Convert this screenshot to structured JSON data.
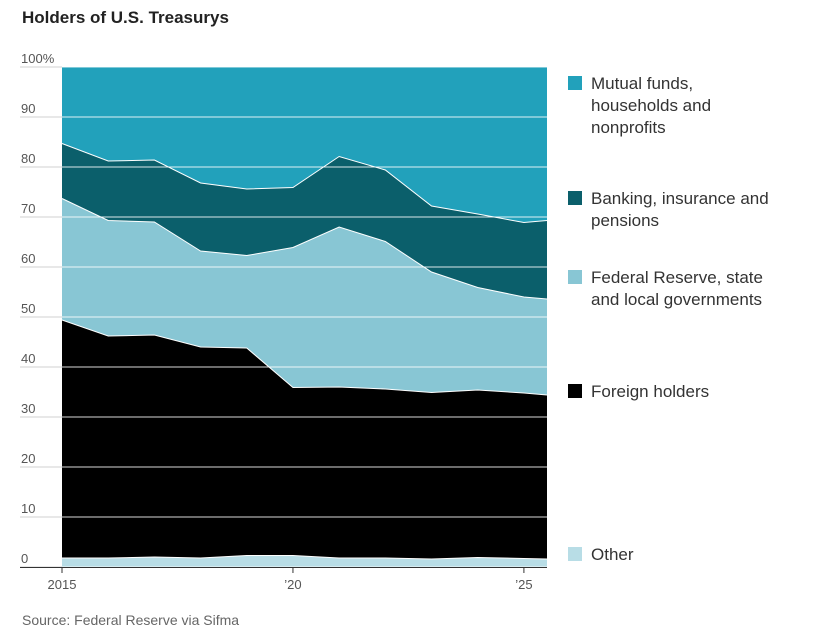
{
  "title": "Holders of U.S. Treasurys",
  "source": "Source: Federal Reserve via Sifma",
  "legend": [
    {
      "label": "Mutual funds, households and nonprofits",
      "color": "#22a1bb"
    },
    {
      "label": "Banking, insurance and pensions",
      "color": "#0b5f6b"
    },
    {
      "label": "Federal Reserve, state and local governments",
      "color": "#88c6d4"
    },
    {
      "label": "Foreign holders",
      "color": "#000000"
    },
    {
      "label": "Other",
      "color": "#b8dde6"
    }
  ],
  "chart_data": {
    "type": "area",
    "stacked": true,
    "x": [
      2015,
      2016,
      2017,
      2018,
      2019,
      2020,
      2021,
      2022,
      2023,
      2024,
      2025,
      2025.5
    ],
    "xlim": [
      2015,
      2025.5
    ],
    "ylim": [
      0,
      100
    ],
    "yticks": [
      0,
      10,
      20,
      30,
      40,
      50,
      60,
      70,
      80,
      90
    ],
    "ytick_labels": [
      "0",
      "10",
      "20",
      "30",
      "40",
      "50",
      "60",
      "70",
      "80",
      "90",
      "100%"
    ],
    "yticks_all": [
      0,
      10,
      20,
      30,
      40,
      50,
      60,
      70,
      80,
      90,
      100
    ],
    "xticks": [
      2015,
      2020,
      2025
    ],
    "xtick_labels": [
      "2015",
      "’20",
      "’25"
    ],
    "grid": true,
    "legend_position": "right",
    "series": [
      {
        "name": "Other",
        "color": "#b8dde6",
        "values": [
          1.8,
          1.8,
          2.0,
          1.8,
          2.3,
          2.3,
          1.8,
          1.8,
          1.6,
          1.9,
          1.7,
          1.6
        ]
      },
      {
        "name": "Foreign holders",
        "color": "#000000",
        "values": [
          47.6,
          44.4,
          44.4,
          42.2,
          41.5,
          33.6,
          34.2,
          33.8,
          33.3,
          33.5,
          33.1,
          32.8
        ]
      },
      {
        "name": "Federal Reserve, state and local governments",
        "color": "#88c6d4",
        "values": [
          24.3,
          23.1,
          22.6,
          19.2,
          18.5,
          28.0,
          32.0,
          29.5,
          24.1,
          20.5,
          19.2,
          19.2
        ]
      },
      {
        "name": "Banking, insurance and pensions",
        "color": "#0b5f6b",
        "values": [
          11.0,
          11.9,
          12.4,
          13.6,
          13.3,
          12.0,
          14.1,
          14.3,
          13.2,
          14.7,
          14.9,
          15.7
        ]
      },
      {
        "name": "Mutual funds, households and nonprofits",
        "color": "#22a1bb",
        "values": [
          15.3,
          18.8,
          18.6,
          23.2,
          24.4,
          24.1,
          17.9,
          20.6,
          27.8,
          29.4,
          31.1,
          30.7
        ]
      }
    ]
  }
}
